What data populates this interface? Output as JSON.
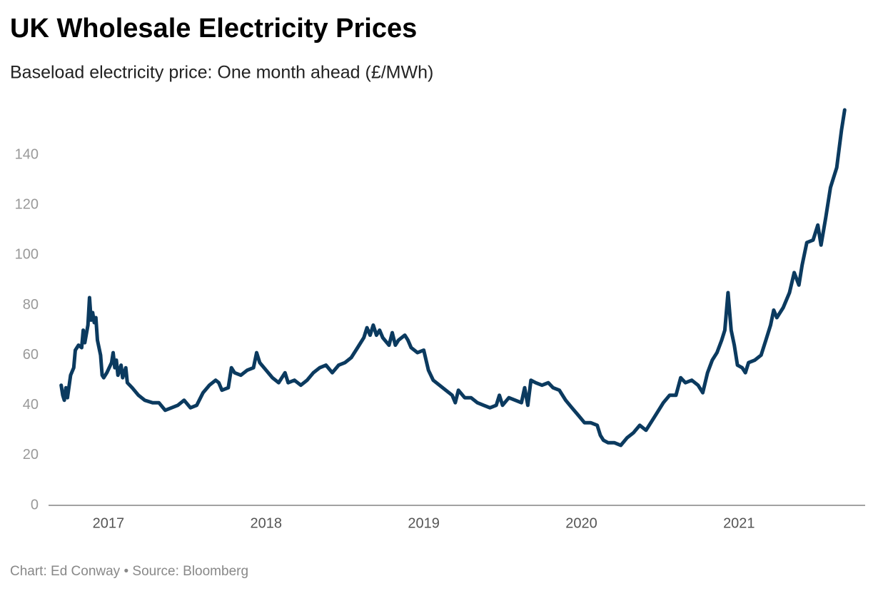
{
  "chart_data": {
    "type": "line",
    "title": "UK Wholesale Electricity Prices",
    "subtitle": "Baseload electricity price: One month ahead (£/MWh)",
    "source": "Chart: Ed Conway • Source: Bloomberg",
    "x": [
      2016.7,
      2016.71,
      2016.72,
      2016.73,
      2016.74,
      2016.76,
      2016.78,
      2016.79,
      2016.81,
      2016.83,
      2016.84,
      2016.85,
      2016.87,
      2016.88,
      2016.89,
      2016.9,
      2016.91,
      2016.92,
      2016.93,
      2016.95,
      2016.96,
      2016.97,
      2016.99,
      2017.02,
      2017.03,
      2017.04,
      2017.05,
      2017.06,
      2017.08,
      2017.09,
      2017.11,
      2017.12,
      2017.15,
      2017.19,
      2017.23,
      2017.28,
      2017.32,
      2017.36,
      2017.4,
      2017.44,
      2017.48,
      2017.52,
      2017.56,
      2017.6,
      2017.64,
      2017.68,
      2017.7,
      2017.72,
      2017.76,
      2017.78,
      2017.8,
      2017.84,
      2017.88,
      2017.92,
      2017.94,
      2017.96,
      2018.0,
      2018.04,
      2018.08,
      2018.12,
      2018.14,
      2018.18,
      2018.22,
      2018.26,
      2018.3,
      2018.34,
      2018.38,
      2018.42,
      2018.46,
      2018.5,
      2018.54,
      2018.58,
      2018.62,
      2018.64,
      2018.66,
      2018.68,
      2018.7,
      2018.72,
      2018.74,
      2018.78,
      2018.8,
      2018.82,
      2018.84,
      2018.88,
      2018.9,
      2018.92,
      2018.96,
      2019.0,
      2019.03,
      2019.06,
      2019.1,
      2019.14,
      2019.18,
      2019.2,
      2019.22,
      2019.26,
      2019.3,
      2019.34,
      2019.38,
      2019.42,
      2019.46,
      2019.48,
      2019.5,
      2019.54,
      2019.58,
      2019.62,
      2019.64,
      2019.66,
      2019.68,
      2019.71,
      2019.75,
      2019.79,
      2019.82,
      2019.86,
      2019.9,
      2019.94,
      2019.98,
      2020.02,
      2020.06,
      2020.1,
      2020.12,
      2020.14,
      2020.17,
      2020.21,
      2020.25,
      2020.29,
      2020.33,
      2020.37,
      2020.41,
      2020.45,
      2020.48,
      2020.52,
      2020.56,
      2020.6,
      2020.63,
      2020.66,
      2020.7,
      2020.74,
      2020.77,
      2020.8,
      2020.83,
      2020.86,
      2020.89,
      2020.91,
      2020.93,
      2020.95,
      2020.97,
      2020.99,
      2021.02,
      2021.04,
      2021.06,
      2021.1,
      2021.14,
      2021.17,
      2021.2,
      2021.22,
      2021.24,
      2021.28,
      2021.32,
      2021.35,
      2021.38,
      2021.4,
      2021.43,
      2021.47,
      2021.5,
      2021.52,
      2021.55,
      2021.58,
      2021.62,
      2021.65,
      2021.67
    ],
    "values": [
      48,
      44,
      42,
      47,
      43,
      52,
      55,
      62,
      64,
      63,
      70,
      65,
      72,
      83,
      74,
      77,
      73,
      75,
      66,
      60,
      52,
      51,
      53,
      57,
      61,
      55,
      58,
      52,
      56,
      51,
      55,
      49,
      47,
      44,
      42,
      41,
      41,
      38,
      39,
      40,
      42,
      39,
      40,
      45,
      48,
      50,
      49,
      46,
      47,
      55,
      53,
      52,
      54,
      55,
      61,
      57,
      54,
      51,
      49,
      53,
      49,
      50,
      48,
      50,
      53,
      55,
      56,
      53,
      56,
      57,
      59,
      63,
      67,
      71,
      68,
      72,
      68,
      70,
      67,
      64,
      69,
      64,
      66,
      68,
      66,
      63,
      61,
      62,
      54,
      50,
      48,
      46,
      44,
      41,
      46,
      43,
      43,
      41,
      40,
      39,
      40,
      44,
      40,
      43,
      42,
      41,
      47,
      40,
      50,
      49,
      48,
      49,
      47,
      46,
      42,
      39,
      36,
      33,
      33,
      32,
      28,
      26,
      25,
      25,
      24,
      27,
      29,
      32,
      30,
      34,
      37,
      41,
      44,
      44,
      51,
      49,
      50,
      48,
      45,
      53,
      58,
      61,
      66,
      70,
      85,
      70,
      64,
      56,
      55,
      53,
      57,
      58,
      60,
      66,
      72,
      78,
      75,
      79,
      85,
      93,
      88,
      96,
      105,
      106,
      112,
      104,
      115,
      127,
      135,
      150,
      158
    ],
    "color": "#0b3a5f",
    "xlim": [
      2016.62,
      2021.8
    ],
    "xticks": [
      2017,
      2018,
      2019,
      2020,
      2021
    ],
    "ylim": [
      0,
      160
    ],
    "yticks": [
      0,
      20,
      40,
      60,
      80,
      100,
      120,
      140
    ],
    "grid": false
  }
}
